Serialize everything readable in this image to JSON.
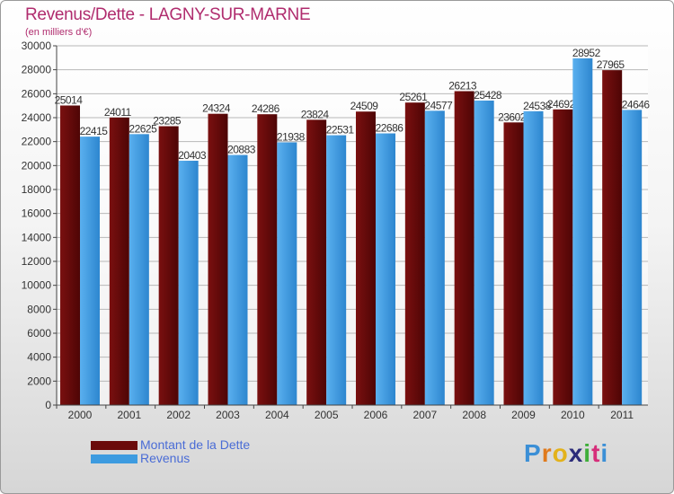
{
  "chart_data": {
    "type": "bar",
    "title": "Revenus/Dette - LAGNY-SUR-MARNE",
    "subtitle": "(en milliers d'€)",
    "categories": [
      "2000",
      "2001",
      "2002",
      "2003",
      "2004",
      "2005",
      "2006",
      "2007",
      "2008",
      "2009",
      "2010",
      "2011"
    ],
    "series": [
      {
        "name": "Montant de la Dette",
        "color": "#6b0a0a",
        "values": [
          25014,
          24011,
          23285,
          24324,
          24286,
          23824,
          24509,
          25261,
          26213,
          23602,
          24692,
          27965
        ],
        "labels": [
          "25014",
          "24011",
          "23285",
          "24324",
          "24286",
          "23824",
          "24509",
          "25261",
          "26213",
          "23602",
          "24692",
          "27965"
        ]
      },
      {
        "name": "Revenus",
        "color": "#3d9be0",
        "values": [
          22415,
          22625,
          20403,
          20883,
          21938,
          22531,
          22686,
          24577,
          25428,
          24538,
          28952,
          24646
        ],
        "labels": [
          "22415",
          "22625",
          "20403",
          "20883",
          "21938",
          "22531",
          "22686",
          "24577",
          "25428",
          "24538",
          "28952",
          "24646"
        ]
      }
    ],
    "ylim": [
      0,
      30000
    ],
    "yticks": [
      0,
      2000,
      4000,
      6000,
      8000,
      10000,
      12000,
      14000,
      16000,
      18000,
      20000,
      22000,
      24000,
      26000,
      28000,
      30000
    ],
    "grid": true,
    "legend_position": "bottom-left"
  },
  "legend": {
    "items": [
      {
        "label": "Montant de la Dette",
        "color": "#6b0a0a"
      },
      {
        "label": "Revenus",
        "color": "#3d9be0"
      }
    ]
  },
  "logo": {
    "letters": [
      "P",
      "r",
      "o",
      "x",
      "i",
      "t",
      "i"
    ],
    "colors": [
      "#3b8fd6",
      "#e07a1c",
      "#e3b21a",
      "#2c2c7a",
      "#3fae3a",
      "#d62d7a",
      "#3b8fd6"
    ]
  }
}
